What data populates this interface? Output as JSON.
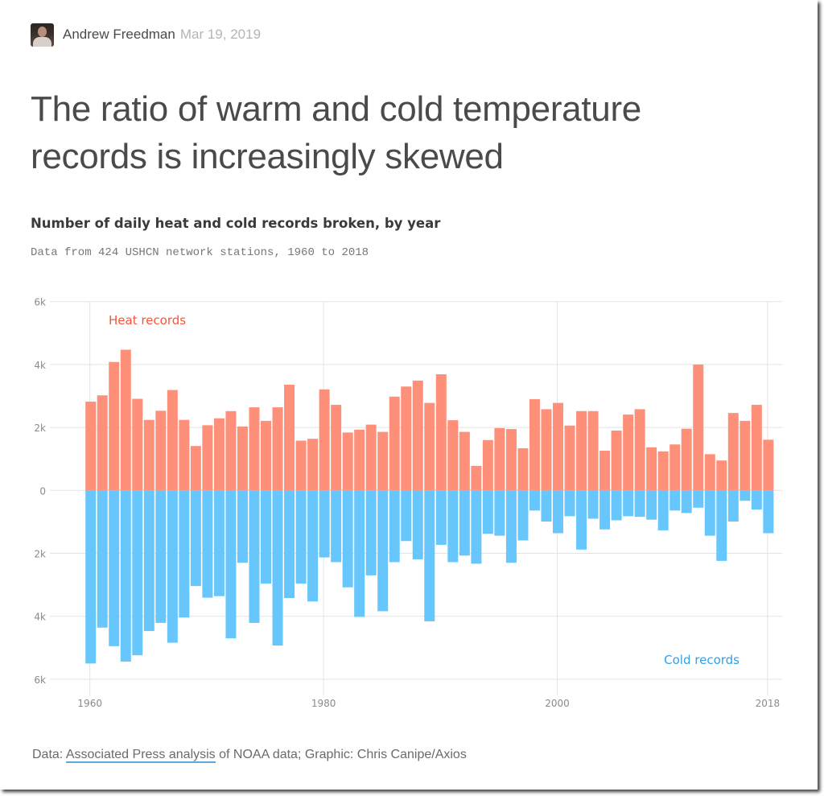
{
  "byline": {
    "author": "Andrew Freedman",
    "date": "Mar 19, 2019",
    "avatar_icon": "author-photo"
  },
  "headline": "The ratio of warm and cold temperature records is increasingly skewed",
  "footer": {
    "prefix": "Data: ",
    "link_text": "Associated Press analysis",
    "suffix": " of NOAA data; Graphic: Chris Canipe/Axios"
  },
  "colors": {
    "heat": "#fe9079",
    "cold": "#67c7fd",
    "heat_label": "#fe5237",
    "cold_label": "#2ea0ec"
  },
  "chart_data": {
    "type": "bar",
    "title": "Number of daily heat and cold records broken, by year",
    "subtitle": "Data from 424 USHCN network stations, 1960 to 2018",
    "xlabel": "",
    "ylabel": "",
    "ylim": [
      -6000,
      6000
    ],
    "y_ticks": [
      6000,
      4000,
      2000,
      0,
      -2000,
      -4000,
      -6000
    ],
    "y_tick_labels": [
      "6k",
      "4k",
      "2k",
      "0",
      "2k",
      "4k",
      "6k"
    ],
    "x_ticks": [
      1960,
      1980,
      2000,
      2018
    ],
    "x_tick_labels": [
      "1960",
      "1980",
      "2000",
      "2018"
    ],
    "grid": true,
    "legend": [
      {
        "name": "Heat records",
        "placement": "top-left"
      },
      {
        "name": "Cold records",
        "placement": "bottom-right"
      }
    ],
    "categories": [
      1960,
      1961,
      1962,
      1963,
      1964,
      1965,
      1966,
      1967,
      1968,
      1969,
      1970,
      1971,
      1972,
      1973,
      1974,
      1975,
      1976,
      1977,
      1978,
      1979,
      1980,
      1981,
      1982,
      1983,
      1984,
      1985,
      1986,
      1987,
      1988,
      1989,
      1990,
      1991,
      1992,
      1993,
      1994,
      1995,
      1996,
      1997,
      1998,
      1999,
      2000,
      2001,
      2002,
      2003,
      2004,
      2005,
      2006,
      2007,
      2008,
      2009,
      2010,
      2011,
      2012,
      2013,
      2014,
      2015,
      2016,
      2017,
      2018
    ],
    "series": [
      {
        "name": "Heat records",
        "direction": "up",
        "values": [
          2820,
          3020,
          4080,
          4470,
          2910,
          2240,
          2530,
          3190,
          2240,
          1410,
          2070,
          2290,
          2520,
          2030,
          2640,
          2210,
          2640,
          3360,
          1580,
          1640,
          3210,
          2720,
          1840,
          1930,
          2090,
          1860,
          2980,
          3300,
          3490,
          2780,
          3690,
          2230,
          1860,
          780,
          1600,
          1980,
          1950,
          1340,
          2900,
          2580,
          2780,
          2060,
          2520,
          2520,
          1260,
          1900,
          2410,
          2580,
          1370,
          1240,
          1460,
          1960,
          4000,
          1150,
          950,
          2460,
          2210,
          2720,
          1610
        ]
      },
      {
        "name": "Cold records",
        "direction": "down",
        "values": [
          5500,
          4360,
          4950,
          5440,
          5240,
          4470,
          4210,
          4840,
          4040,
          3040,
          3410,
          3360,
          4700,
          2300,
          4210,
          2960,
          4930,
          3420,
          2960,
          3530,
          2130,
          2280,
          3080,
          4020,
          2700,
          3840,
          2280,
          1610,
          2190,
          4160,
          1730,
          2280,
          2070,
          2330,
          1380,
          1440,
          2300,
          1590,
          640,
          990,
          1360,
          820,
          1880,
          900,
          1240,
          950,
          820,
          840,
          930,
          1270,
          640,
          720,
          550,
          1440,
          2240,
          990,
          330,
          610,
          1360
        ]
      }
    ]
  }
}
